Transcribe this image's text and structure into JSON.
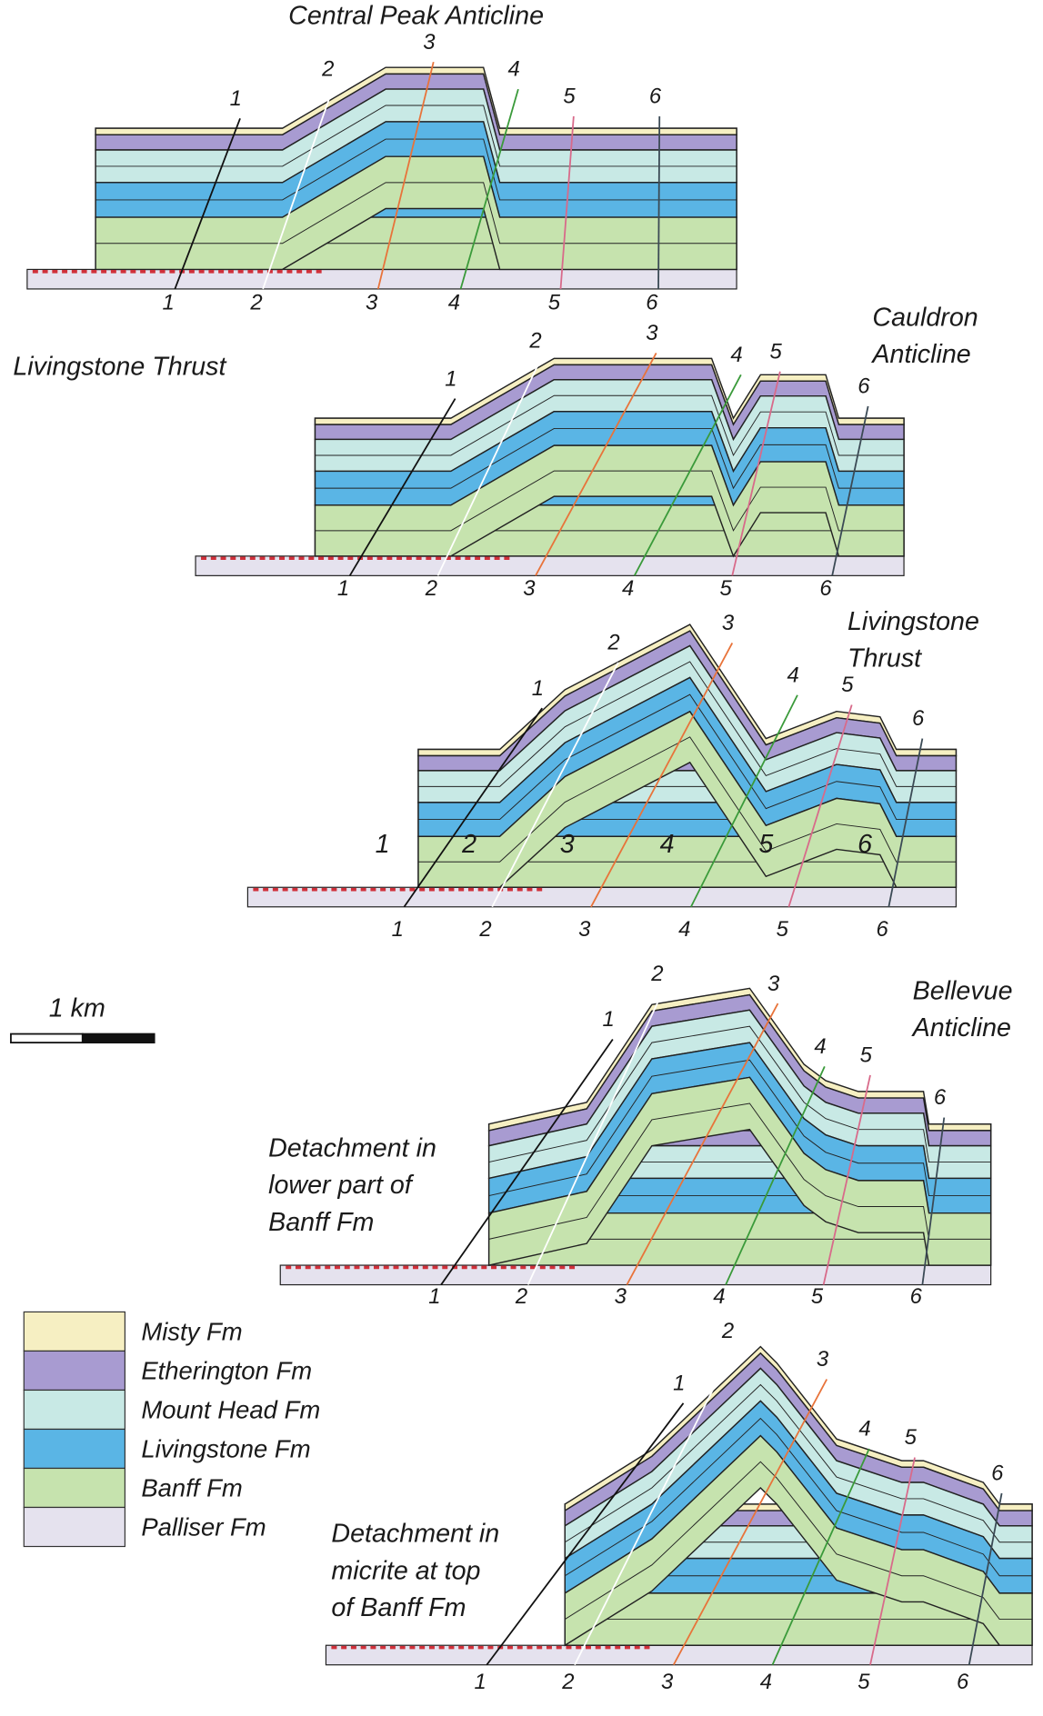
{
  "panels": [
    {
      "title": [
        "Central Peak Anticline"
      ],
      "top_pins": [
        "1",
        "2",
        "3",
        "4",
        "5",
        "6"
      ],
      "bottom_pins": [
        "1",
        "2",
        "3",
        "4",
        "5",
        "6"
      ]
    },
    {
      "left_label": "Livingstone Thrust",
      "title": [
        "Cauldron",
        "Anticline"
      ],
      "top_pins": [
        "1",
        "2",
        "3",
        "4",
        "5",
        "6"
      ],
      "bottom_pins": [
        "1",
        "2",
        "3",
        "4",
        "5",
        "6"
      ]
    },
    {
      "title": [
        "Livingstone",
        "Thrust"
      ],
      "top_pins": [
        "1",
        "2",
        "3",
        "4",
        "5",
        "6"
      ],
      "inline_pins": [
        "1",
        "2",
        "3",
        "4",
        "5",
        "6"
      ],
      "bottom_pins": [
        "1",
        "2",
        "3",
        "4",
        "5",
        "6"
      ]
    },
    {
      "title": [
        "Bellevue",
        "Anticline"
      ],
      "annotation": [
        "Detachment in",
        "lower part of",
        "Banff Fm"
      ],
      "top_pins": [
        "1",
        "2",
        "3",
        "4",
        "5",
        "6"
      ],
      "bottom_pins": [
        "1",
        "2",
        "3",
        "4",
        "5",
        "6"
      ]
    },
    {
      "annotation": [
        "Detachment in",
        "micrite at top",
        "of Banff Fm"
      ],
      "top_pins": [
        "1",
        "2",
        "3",
        "4",
        "5",
        "6"
      ],
      "bottom_pins": [
        "1",
        "2",
        "3",
        "4",
        "5",
        "6"
      ]
    }
  ],
  "scale_bar": "1 km",
  "legend": [
    {
      "label": "Misty Fm",
      "color": "#f6efc2"
    },
    {
      "label": "Etherington Fm",
      "color": "#a89bd1"
    },
    {
      "label": "Mount Head Fm",
      "color": "#c8e9e5"
    },
    {
      "label": "Livingstone Fm",
      "color": "#5ab5e5"
    },
    {
      "label": "Banff Fm",
      "color": "#c6e3ae"
    },
    {
      "label": "Palliser Fm",
      "color": "#e5e2ee"
    }
  ]
}
